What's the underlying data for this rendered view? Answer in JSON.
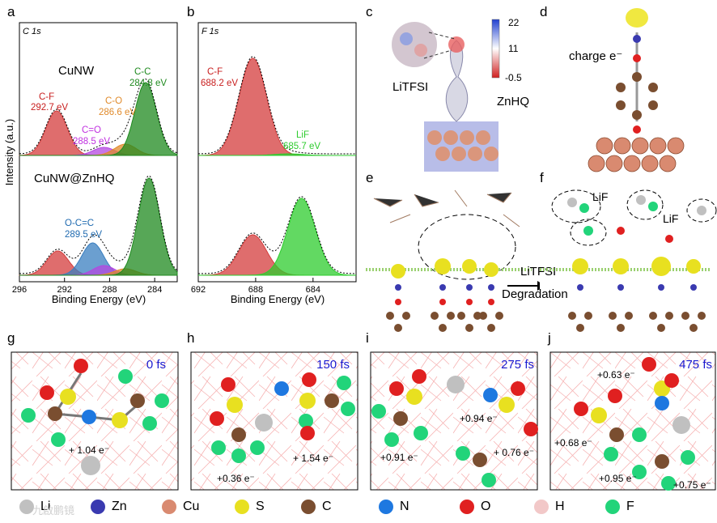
{
  "panels": {
    "a": "a",
    "b": "b",
    "c": "c",
    "d": "d",
    "e": "e",
    "f": "f",
    "g": "g",
    "h": "h",
    "i": "i",
    "j": "j"
  },
  "chart_data": [
    {
      "type": "line",
      "panel": "a",
      "region": "C 1s",
      "xlabel": "Binding Energy (eV)",
      "ylabel": "Intensity (a.u.)",
      "xlim": [
        296,
        282
      ],
      "xticks": [
        296,
        292,
        288,
        284
      ],
      "tick_labels": [
        "296",
        "292",
        "288",
        "284"
      ],
      "samples": [
        {
          "name": "CuNW",
          "peaks": [
            {
              "label": "C-F\n292.7 eV",
              "center": 292.7,
              "height": 0.55,
              "color": "#d43c3c"
            },
            {
              "label": "C=O\n288.5 eV",
              "center": 288.5,
              "height": 0.1,
              "color": "#b447e0"
            },
            {
              "label": "C-O\n286.6 eV",
              "center": 286.6,
              "height": 0.14,
              "color": "#e08a2a"
            },
            {
              "label": "C-C\n284.8 eV",
              "center": 284.8,
              "height": 0.9,
              "color": "#1f8a1f"
            }
          ]
        },
        {
          "name": "CuNW@ZnHQ",
          "peaks": [
            {
              "label": "",
              "center": 292.6,
              "height": 0.3,
              "color": "#d43c3c"
            },
            {
              "label": "O-C=C\n289.5 eV",
              "center": 289.5,
              "height": 0.4,
              "color": "#3a7fc0"
            },
            {
              "label": "",
              "center": 288.5,
              "height": 0.12,
              "color": "#b447e0"
            },
            {
              "label": "",
              "center": 286.6,
              "height": 0.08,
              "color": "#e08a2a"
            },
            {
              "label": "",
              "center": 284.5,
              "height": 1.2,
              "color": "#1f8a1f"
            }
          ]
        }
      ]
    },
    {
      "type": "line",
      "panel": "b",
      "region": "F 1s",
      "xlabel": "Binding Energy (eV)",
      "xlim": [
        692,
        681
      ],
      "xticks": [
        692,
        688,
        684
      ],
      "tick_labels": [
        "692",
        "688",
        "684"
      ],
      "samples": [
        {
          "name": "CuNW",
          "peaks": [
            {
              "label": "C-F\n688.2 eV",
              "center": 688.2,
              "height": 1.2,
              "color": "#d43c3c"
            },
            {
              "label": "LiF\n685.7 eV",
              "center": 685.7,
              "height": 0.02,
              "color": "#2ecc2e"
            }
          ]
        },
        {
          "name": "CuNW@ZnHQ",
          "peaks": [
            {
              "label": "",
              "center": 688.2,
              "height": 0.5,
              "color": "#d43c3c"
            },
            {
              "label": "",
              "center": 684.8,
              "height": 0.95,
              "color": "#2ecc2e"
            }
          ]
        }
      ]
    }
  ],
  "labels": {
    "a_cunw": "CuNW",
    "a_znhq": "CuNW@ZnHQ",
    "a_cf": [
      "C-F",
      "292.7 eV"
    ],
    "a_co": [
      "C-O",
      "286.6 eV"
    ],
    "a_cc": [
      "C-C",
      "284.8 eV"
    ],
    "a_ceo": [
      "C=O",
      "288.5 eV"
    ],
    "a_occ": [
      "O-C=C",
      "289.5 eV"
    ],
    "b_cf": [
      "C-F",
      "688.2 eV"
    ],
    "b_lif": [
      "LiF",
      "685.7 eV"
    ],
    "c_litfsi": "LiTFSI",
    "c_znhq": "ZnHQ",
    "c_scale": [
      "22",
      "11",
      "-0.5"
    ],
    "d_charge": "charge e⁻",
    "e_arrow": [
      "LiTFSI",
      "Degradation"
    ],
    "f_lif": [
      "LiF",
      "LiF"
    ],
    "g_time": "0 fs",
    "h_time": "150 fs",
    "i_time": "275 fs",
    "j_time": "475 fs",
    "g_charge": "+ 1.04 e⁻",
    "h_charges": [
      "+0.36 e⁻",
      "+ 1.54 e⁻"
    ],
    "i_charges": [
      "+0.94 e⁻",
      "+0.91 e⁻",
      "+ 0.76 e⁻"
    ],
    "j_charges": [
      "+0.63 e⁻",
      "+0.68 e⁻",
      "+0.95 e⁻",
      "+0.75 e⁻"
    ]
  },
  "legend": [
    {
      "label": "Li",
      "color": "#c0c0c0"
    },
    {
      "label": "Zn",
      "color": "#3a3ab0"
    },
    {
      "label": "Cu",
      "color": "#d98a70"
    },
    {
      "label": "S",
      "color": "#e8e020"
    },
    {
      "label": "C",
      "color": "#7a4e30"
    },
    {
      "label": "N",
      "color": "#1e78e0"
    },
    {
      "label": "O",
      "color": "#e02020"
    },
    {
      "label": "H",
      "color": "#f2c8c8"
    },
    {
      "label": "F",
      "color": "#22d47a"
    }
  ],
  "watermark": "九啟鹏镜",
  "colors": {
    "time_blue": "#1a1ad0",
    "cf_red": "#c81e1e",
    "cc_green": "#1f8a1f",
    "co_orange": "#e08a2a",
    "ceo_purple": "#c030e0",
    "occ_blue": "#1f6ab0",
    "lif_green": "#2ecc2e"
  }
}
